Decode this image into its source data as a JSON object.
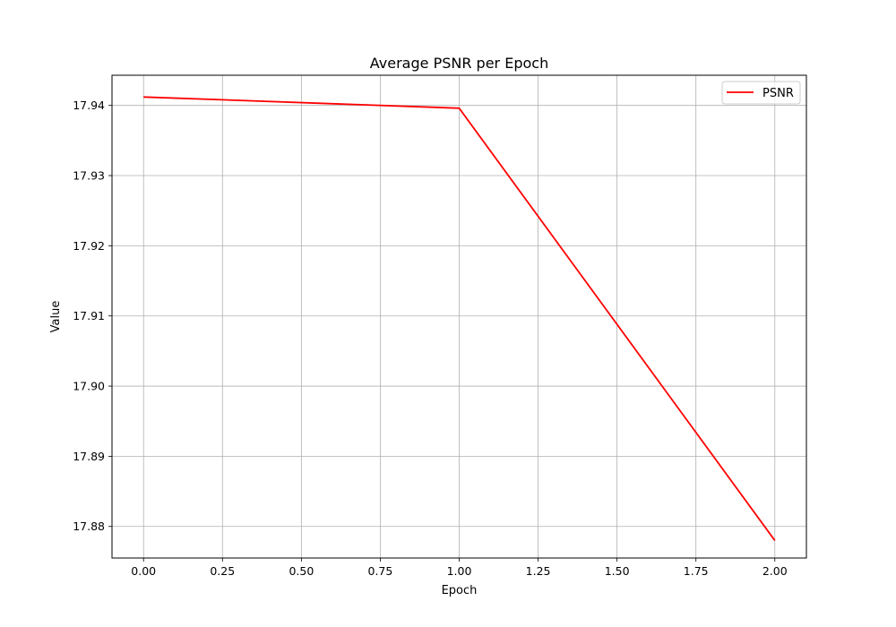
{
  "chart_data": {
    "type": "line",
    "title": "Average PSNR per Epoch",
    "xlabel": "Epoch",
    "ylabel": "Value",
    "xlim": [
      -0.1,
      2.1
    ],
    "ylim": [
      17.8755,
      17.9443
    ],
    "x_ticks": [
      0.0,
      0.25,
      0.5,
      0.75,
      1.0,
      1.25,
      1.5,
      1.75,
      2.0
    ],
    "x_tick_labels": [
      "0.00",
      "0.25",
      "0.50",
      "0.75",
      "1.00",
      "1.25",
      "1.50",
      "1.75",
      "2.00"
    ],
    "y_ticks": [
      17.88,
      17.89,
      17.9,
      17.91,
      17.92,
      17.93,
      17.94
    ],
    "y_tick_labels": [
      "17.88",
      "17.89",
      "17.90",
      "17.91",
      "17.92",
      "17.93",
      "17.94"
    ],
    "grid": true,
    "legend_position": "top-right",
    "series": [
      {
        "name": "PSNR",
        "color": "#ff0000",
        "x": [
          0,
          1,
          2
        ],
        "y": [
          17.9412,
          17.9396,
          17.878
        ]
      }
    ]
  }
}
